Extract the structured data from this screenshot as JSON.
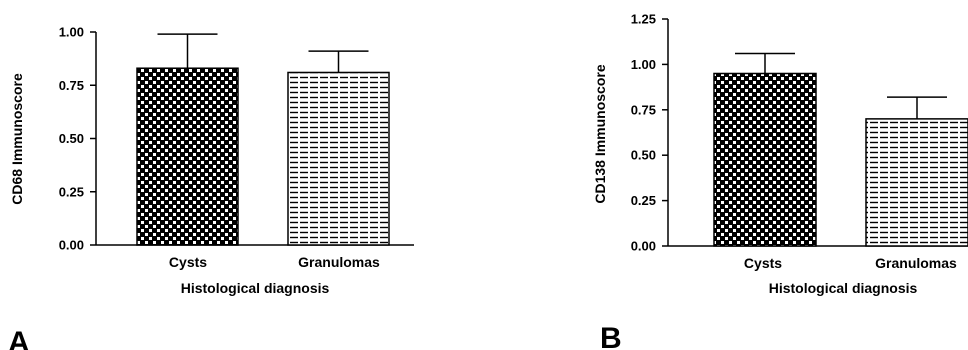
{
  "chart_data": [
    {
      "type": "bar",
      "panel_label": "A",
      "categories": [
        "Cysts",
        "Granulomas"
      ],
      "values": [
        0.83,
        0.81
      ],
      "error_upper": [
        0.99,
        0.91
      ],
      "patterns": [
        "checker",
        "hlines"
      ],
      "xlabel": "Histological diagnosis",
      "ylabel": "CD68  Immunoscore",
      "ylim": [
        0,
        1.0
      ],
      "yticks": [
        "0.00",
        "0.25",
        "0.50",
        "0.75",
        "1.00"
      ],
      "ytick_values": [
        0,
        0.25,
        0.5,
        0.75,
        1.0
      ],
      "grid": false,
      "legend": "none"
    },
    {
      "type": "bar",
      "panel_label": "B",
      "categories": [
        "Cysts",
        "Granulomas"
      ],
      "values": [
        0.95,
        0.7
      ],
      "error_upper": [
        1.06,
        0.82
      ],
      "patterns": [
        "checker",
        "hlines"
      ],
      "xlabel": "Histological diagnosis",
      "ylabel": "CD138  Immunoscore",
      "ylim": [
        0,
        1.25
      ],
      "yticks": [
        "0.00",
        "0.25",
        "0.50",
        "0.75",
        "1.00",
        "1.25"
      ],
      "ytick_values": [
        0,
        0.25,
        0.5,
        0.75,
        1.0,
        1.25
      ],
      "grid": false,
      "legend": "none"
    }
  ]
}
